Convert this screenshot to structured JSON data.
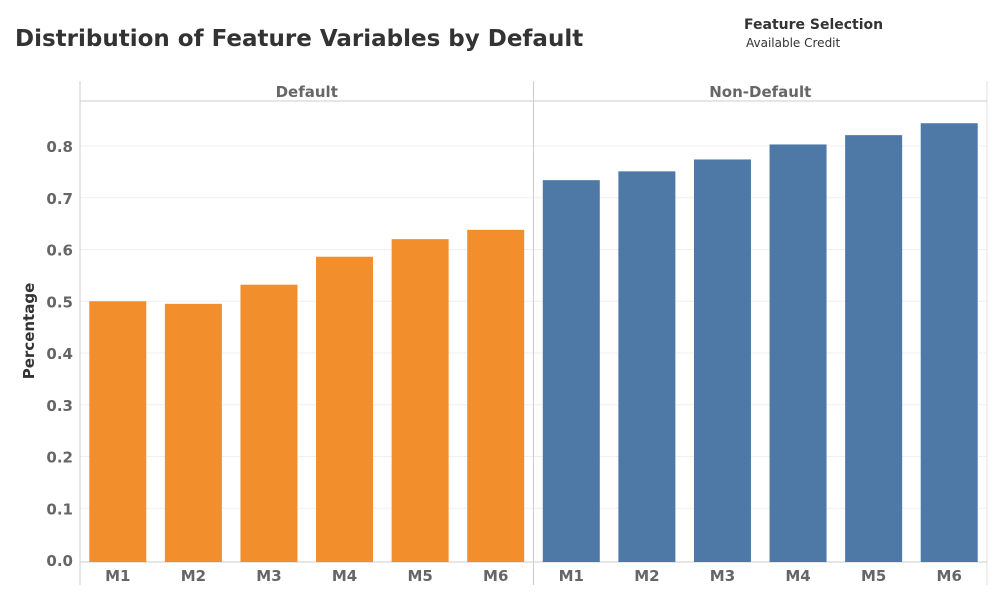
{
  "header": {
    "title": "Distribution of Feature Variables by Default",
    "filter_title": "Feature Selection",
    "filter_value": "Available Credit"
  },
  "chart_data": {
    "type": "bar",
    "ylabel": "Percentage",
    "ylim": [
      0,
      0.85
    ],
    "yticks": [
      "0.0",
      "0.1",
      "0.2",
      "0.3",
      "0.4",
      "0.5",
      "0.6",
      "0.7",
      "0.8"
    ],
    "grid": true,
    "panels": [
      {
        "name": "Default",
        "color": "#F28E2B",
        "categories": [
          "M1",
          "M2",
          "M3",
          "M4",
          "M5",
          "M6"
        ],
        "values": [
          0.5,
          0.495,
          0.532,
          0.586,
          0.62,
          0.638
        ]
      },
      {
        "name": "Non-Default",
        "color": "#4E79A7",
        "categories": [
          "M1",
          "M2",
          "M3",
          "M4",
          "M5",
          "M6"
        ],
        "values": [
          0.734,
          0.751,
          0.774,
          0.803,
          0.821,
          0.844
        ]
      }
    ]
  }
}
